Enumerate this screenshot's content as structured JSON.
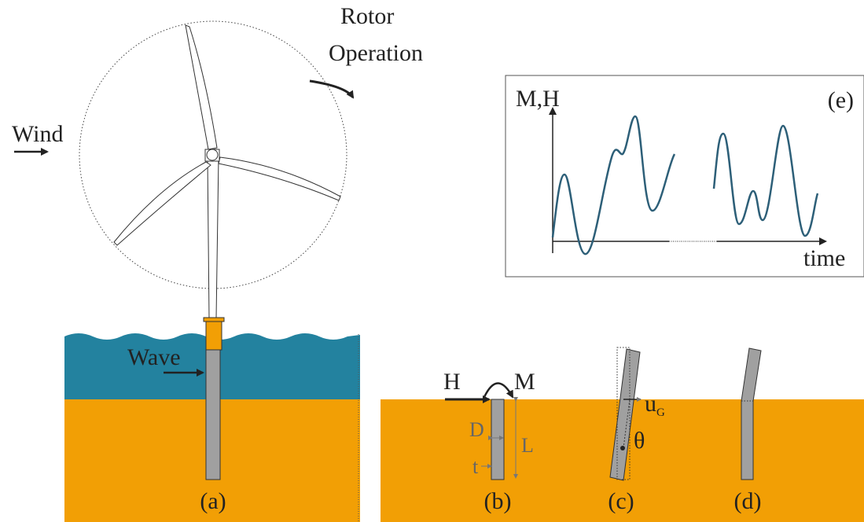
{
  "turbine": {
    "rotor_label": [
      "Rotor",
      "Operation"
    ],
    "wind_label": "Wind",
    "wave_label": "Wave",
    "panel_label": "(a)"
  },
  "pile_loading": {
    "horizontal_load": "H",
    "moment": "M",
    "diameter": "D",
    "length": "L",
    "thickness": "t",
    "panel_label": "(b)"
  },
  "rigid_rotation": {
    "displacement": "u",
    "displacement_subscript": "G",
    "rotation": "θ",
    "panel_label": "(c)"
  },
  "flexible_bending": {
    "panel_label": "(d)"
  },
  "load_history": {
    "y_label": "M,H",
    "x_label": "time",
    "panel_label": "(e)"
  }
}
